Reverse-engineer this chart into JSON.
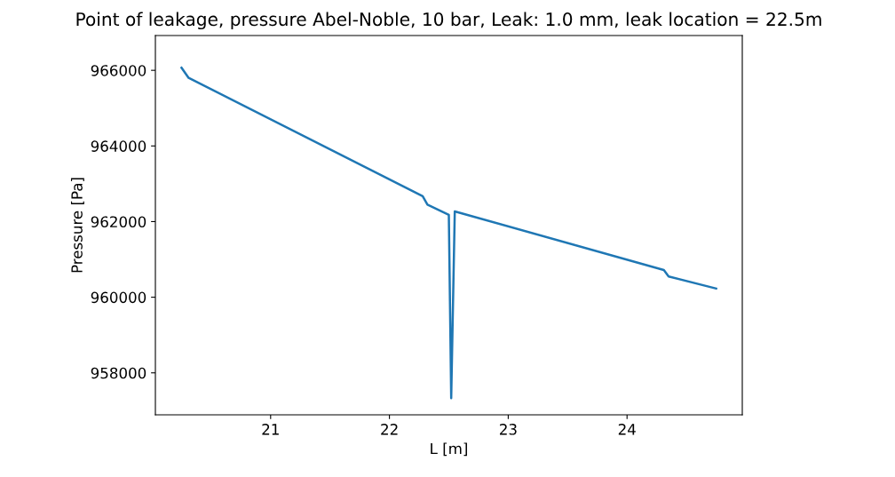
{
  "chart_data": {
    "type": "line",
    "title": "Point of leakage, pressure Abel-Noble, 10 bar, Leak: 1.0 mm, leak location = 22.5m",
    "xlabel": "L [m]",
    "ylabel": "Pressure [Pa]",
    "x": [
      20.25,
      20.31,
      22.28,
      22.32,
      22.5,
      22.52,
      22.55,
      24.31,
      24.35,
      24.75
    ],
    "series": [
      {
        "color": "#1f77b4",
        "values": [
          966070,
          965800,
          962670,
          962450,
          962180,
          957330,
          962270,
          960720,
          960550,
          960230
        ]
      }
    ],
    "xlim": [
      20.03,
      24.97
    ],
    "ylim": [
      956890,
      966920
    ],
    "xticks": [
      21,
      22,
      23,
      24
    ],
    "yticks": [
      958000,
      960000,
      962000,
      964000,
      966000
    ],
    "grid": false,
    "legend": false
  }
}
